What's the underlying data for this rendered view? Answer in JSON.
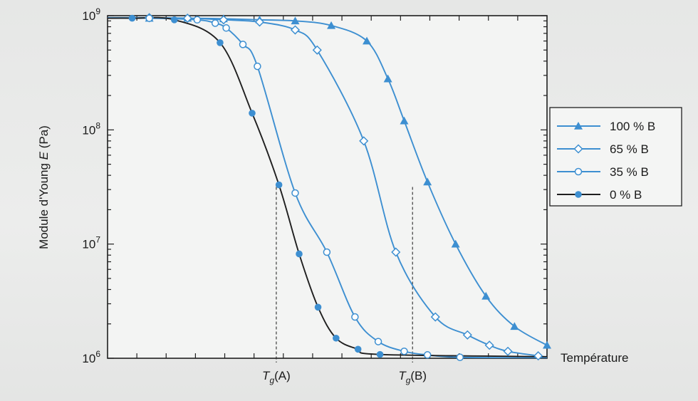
{
  "chart_data": {
    "type": "line",
    "ylabel_prefix": "Module d'Young ",
    "ylabel_var": "E",
    "ylabel_suffix": " (Pa)",
    "xlabel": "Température",
    "yscale": "log",
    "ylim": [
      1000000,
      1000000000
    ],
    "xlim": [
      0,
      100
    ],
    "y_ticks": [
      {
        "base": "10",
        "exp": "6",
        "value": 1000000
      },
      {
        "base": "10",
        "exp": "7",
        "value": 10000000
      },
      {
        "base": "10",
        "exp": "8",
        "value": 100000000
      },
      {
        "base": "10",
        "exp": "9",
        "value": 1000000000
      }
    ],
    "x_markers": [
      {
        "base": "T",
        "sub": "g",
        "suffix": "(A)",
        "x": 38.4,
        "y": 31600000
      },
      {
        "base": "T",
        "sub": "g",
        "suffix": "(B)",
        "x": 69.4,
        "y": 31600000
      }
    ],
    "series": [
      {
        "name": "100 % B",
        "marker": "triangle",
        "color": "#3d8fd1",
        "x": [
          9.5,
          18.2,
          26.4,
          34.6,
          42.7,
          50.9,
          59.0,
          63.8,
          67.5,
          72.8,
          79.2,
          86.1,
          92.6,
          100
        ],
        "y": [
          950000000,
          950000000,
          940000000,
          920000000,
          900000000,
          820000000,
          600000000,
          280000000,
          120000000,
          35000000,
          10000000,
          3500000,
          1900000,
          1300000
        ]
      },
      {
        "name": "65 % B",
        "marker": "diamond",
        "color": "#3d8fd1",
        "x": [
          9.5,
          18.2,
          26.4,
          34.6,
          42.7,
          47.7,
          58.3,
          65.6,
          74.6,
          81.9,
          86.9,
          91.1,
          98
        ],
        "y": [
          960000000,
          950000000,
          920000000,
          880000000,
          750000000,
          500000000,
          80000000,
          8500000,
          2300000,
          1600000,
          1300000,
          1150000,
          1050000
        ]
      },
      {
        "name": "35 % B",
        "marker": "circle-open",
        "color": "#3d8fd1",
        "x": [
          9.5,
          20.4,
          24.5,
          27.0,
          30.8,
          34.1,
          42.7,
          49.9,
          56.3,
          61.6,
          67.5,
          72.8,
          80.2
        ],
        "y": [
          950000000,
          920000000,
          860000000,
          780000000,
          560000000,
          360000000,
          28000000,
          8500000,
          2300000,
          1400000,
          1150000,
          1070000,
          1020000
        ]
      },
      {
        "name": "0 % B",
        "marker": "circle-filled",
        "color": "#3d8fd1",
        "line_color": "#1f1f1f",
        "x": [
          5.6,
          15.2,
          25.6,
          32.9,
          39.0,
          43.6,
          47.9,
          52.0,
          57.0,
          62.0
        ],
        "y": [
          950000000,
          920000000,
          580000000,
          140000000,
          33000000,
          8200000,
          2800000,
          1500000,
          1200000,
          1080000
        ]
      }
    ],
    "legend_position": "right"
  }
}
